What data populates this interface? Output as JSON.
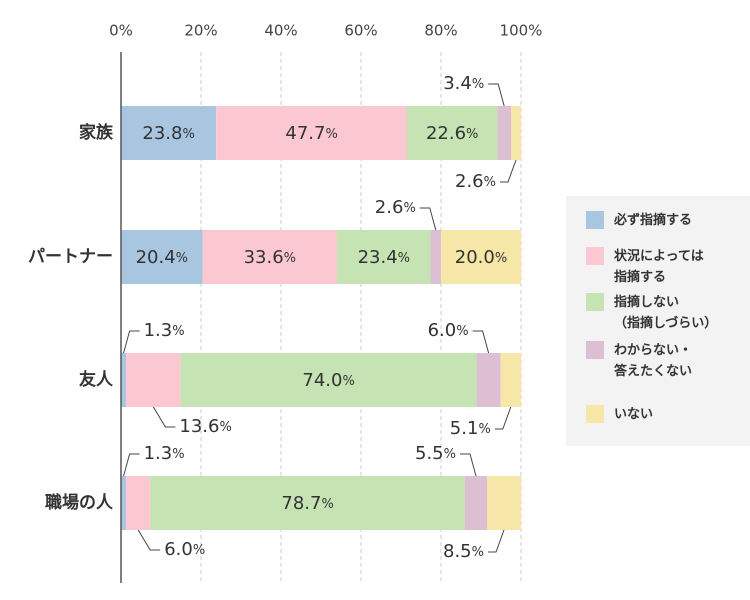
{
  "chart_data": {
    "type": "bar",
    "stacked": true,
    "orientation": "horizontal",
    "xlim": [
      0,
      100
    ],
    "x_ticks": [
      "0%",
      "20%",
      "40%",
      "60%",
      "80%",
      "100%"
    ],
    "grid": true,
    "legend_position": "right",
    "value_suffix": "%",
    "categories": [
      "家族",
      "パートナー",
      "友人",
      "職場の人"
    ],
    "series": [
      {
        "name": "必ず指摘する",
        "color": "#a9c6e0",
        "values": [
          23.8,
          20.4,
          1.3,
          1.3
        ]
      },
      {
        "name": "状況によっては\n指摘する",
        "color": "#fbc8d2",
        "values": [
          47.7,
          33.6,
          13.6,
          6.0
        ]
      },
      {
        "name": "指摘しない\n（指摘しづらい）",
        "color": "#c5e3b3",
        "values": [
          22.6,
          23.4,
          74.0,
          78.7
        ]
      },
      {
        "name": "わからない・\n答えたくない",
        "color": "#dcbfd3",
        "values": [
          3.4,
          2.6,
          6.0,
          5.5
        ]
      },
      {
        "name": "いない",
        "color": "#f6e7a8",
        "values": [
          2.6,
          20.0,
          5.1,
          8.5
        ]
      }
    ]
  }
}
